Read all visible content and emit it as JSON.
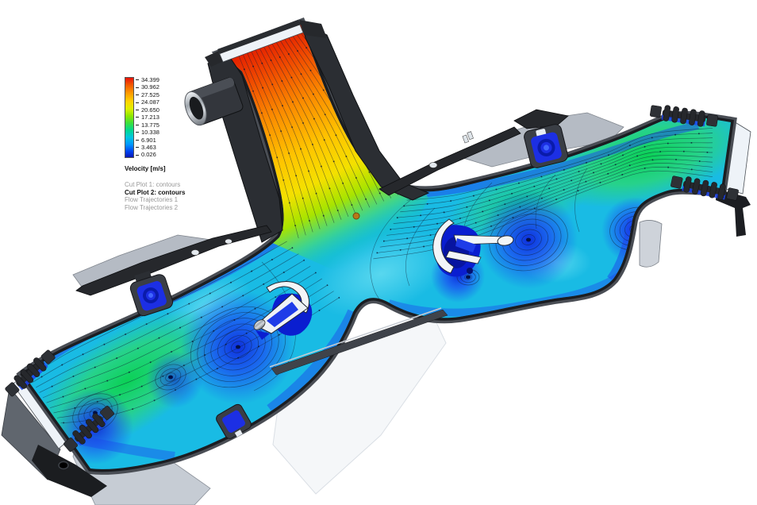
{
  "app": {
    "type": "cfd-flow-simulation-result",
    "background": "#ffffff"
  },
  "legend": {
    "title": "Velocity [m/s]",
    "ticks": [
      "34.399",
      "30.962",
      "27.525",
      "24.087",
      "20.650",
      "17.213",
      "13.775",
      "10.338",
      "6.901",
      "3.463",
      "0.026"
    ],
    "plots": [
      {
        "label": "Cut Plot 1: contours",
        "emphasis": false
      },
      {
        "label": "Cut Plot 2: contours",
        "emphasis": true
      },
      {
        "label": "Flow Trajectories 1",
        "emphasis": false
      },
      {
        "label": "Flow Trajectories 2",
        "emphasis": false
      }
    ]
  },
  "chart_data": {
    "type": "heatmap",
    "title": "Velocity [m/s]",
    "legend_position": "top-left",
    "colorbar": {
      "unit": "m/s",
      "min": 0.026,
      "max": 34.399,
      "orientation": "vertical",
      "tick_values": [
        34.399,
        30.962,
        27.525,
        24.087,
        20.65,
        17.213,
        13.775,
        10.338,
        6.901,
        3.463,
        0.026
      ],
      "tick_labels": [
        "34.399",
        "30.962",
        "27.525",
        "24.087",
        "20.650",
        "17.213",
        "13.775",
        "10.338",
        "6.901",
        "3.463",
        "0.026"
      ],
      "colors_top_to_bottom": [
        "#e8120a",
        "#f25a00",
        "#fe9800",
        "#ffd500",
        "#dff000",
        "#8fe800",
        "#3ce03c",
        "#00d890",
        "#00c6e0",
        "#0096ff",
        "#0040f0",
        "#0a18b4"
      ]
    },
    "plot_items": [
      "Cut Plot 1: contours",
      "Cut Plot 2: contours",
      "Flow Trajectories 1",
      "Flow Trajectories 2"
    ],
    "active_item": "Cut Plot 2: contours",
    "flow_reading": {
      "inlet_duct": "red-orange, approx 27-34 m/s, flow entering from top",
      "outlet_runners": "green, approx 14-24 m/s, toward lower-left and upper-right outlets",
      "plenum_chambers": "cyan-blue, approx 0-10 m/s, with recirculation vortices",
      "vortices_visible": 6,
      "streamlines": "cut plot with surface streamlines and arrow marks"
    }
  },
  "colors": {
    "housing_dark": "#26282c",
    "plate_gray": "#b5bbc4",
    "outlet_plane": "#eef3f8",
    "base_cyan": "#19bbe4",
    "deep_blue": "#0c20dc",
    "fast_green": "#0ad24e",
    "sensor_blue": "#1c2fe4"
  }
}
